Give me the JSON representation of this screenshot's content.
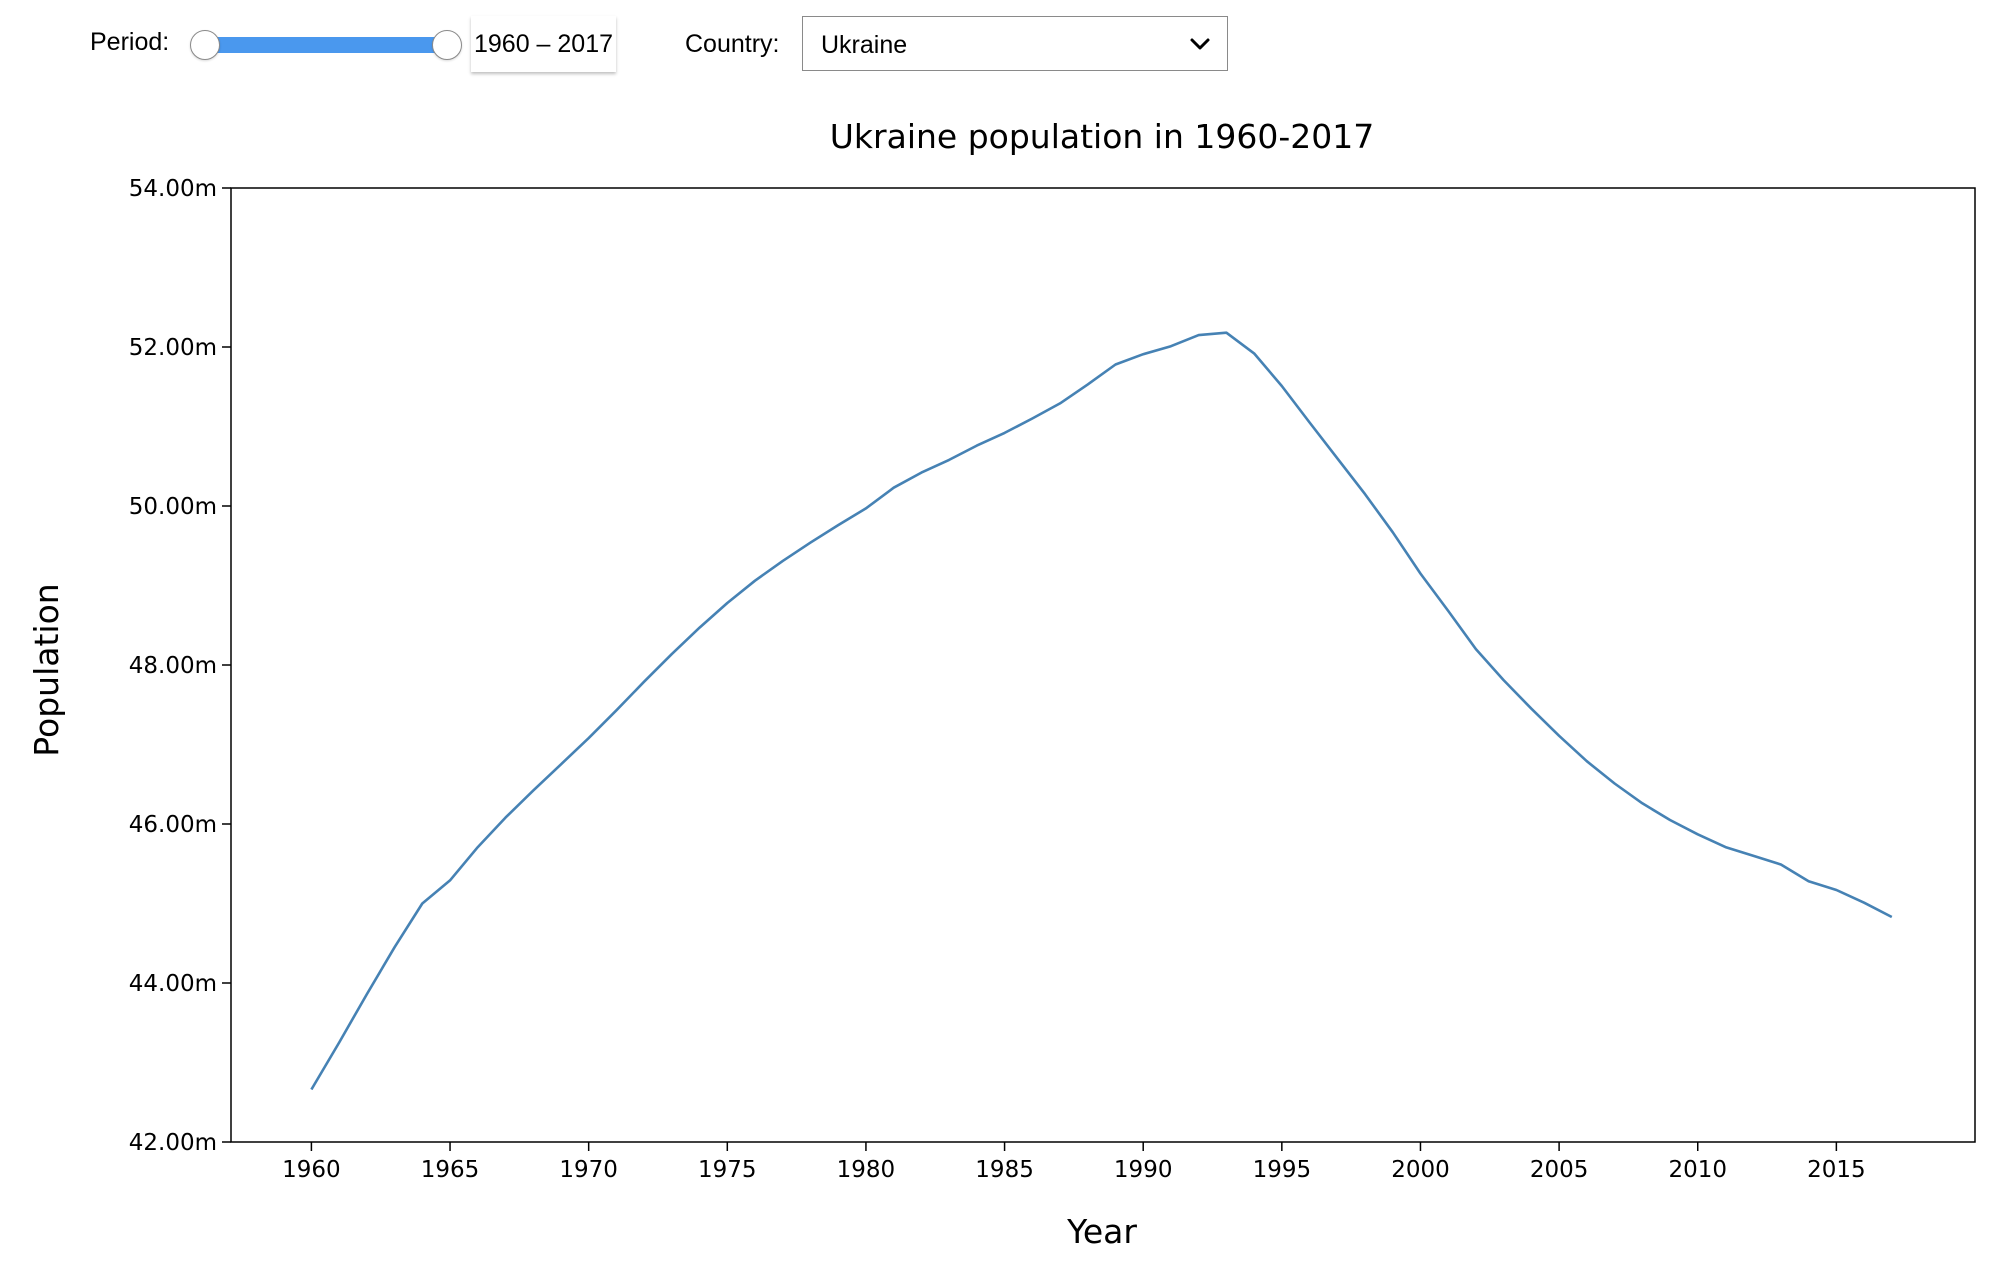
{
  "controls": {
    "period_label": "Period:",
    "period_range": {
      "start": 1960,
      "end": 2017,
      "display": "1960 – 2017"
    },
    "country_label": "Country:",
    "country_selected": "Ukraine"
  },
  "colors": {
    "line": "#4682b4",
    "slider_fill": "#4a98ee"
  },
  "chart_data": {
    "type": "line",
    "title": "Ukraine population in 1960-2017",
    "xlabel": "Year",
    "ylabel": "Population",
    "xlim": [
      1957.1,
      2020.0
    ],
    "ylim": [
      42.0,
      54.0
    ],
    "x_ticks": [
      1960,
      1965,
      1970,
      1975,
      1980,
      1985,
      1990,
      1995,
      2000,
      2005,
      2010,
      2015
    ],
    "y_ticks": [
      "42.00m",
      "44.00m",
      "46.00m",
      "48.00m",
      "50.00m",
      "52.00m",
      "54.00m"
    ],
    "y_tick_values": [
      42,
      44,
      46,
      48,
      50,
      52,
      54
    ],
    "grid": false,
    "series": [
      {
        "x": [
          1960,
          1961,
          1962,
          1963,
          1964,
          1965,
          1966,
          1967,
          1968,
          1969,
          1970,
          1971,
          1972,
          1973,
          1974,
          1975,
          1976,
          1977,
          1978,
          1979,
          1980,
          1981,
          1982,
          1983,
          1984,
          1985,
          1986,
          1987,
          1988,
          1989,
          1990,
          1991,
          1992,
          1993,
          1994,
          1995,
          1996,
          1997,
          1998,
          1999,
          2000,
          2001,
          2002,
          2003,
          2004,
          2005,
          2006,
          2007,
          2008,
          2009,
          2010,
          2011,
          2012,
          2013,
          2014,
          2015,
          2016,
          2017
        ],
        "values": [
          42.66,
          43.25,
          43.86,
          44.45,
          45.0,
          45.29,
          45.71,
          46.08,
          46.42,
          46.75,
          47.08,
          47.43,
          47.79,
          48.14,
          48.47,
          48.78,
          49.06,
          49.31,
          49.54,
          49.76,
          49.97,
          50.23,
          50.42,
          50.58,
          50.76,
          50.92,
          51.1,
          51.29,
          51.53,
          51.78,
          51.91,
          52.01,
          52.15,
          52.18,
          51.92,
          51.51,
          51.05,
          50.6,
          50.15,
          49.67,
          49.15,
          48.68,
          48.2,
          47.81,
          47.45,
          47.11,
          46.79,
          46.51,
          46.26,
          46.05,
          45.87,
          45.71,
          45.6,
          45.49,
          45.28,
          45.17,
          45.01,
          44.83
        ]
      }
    ]
  }
}
